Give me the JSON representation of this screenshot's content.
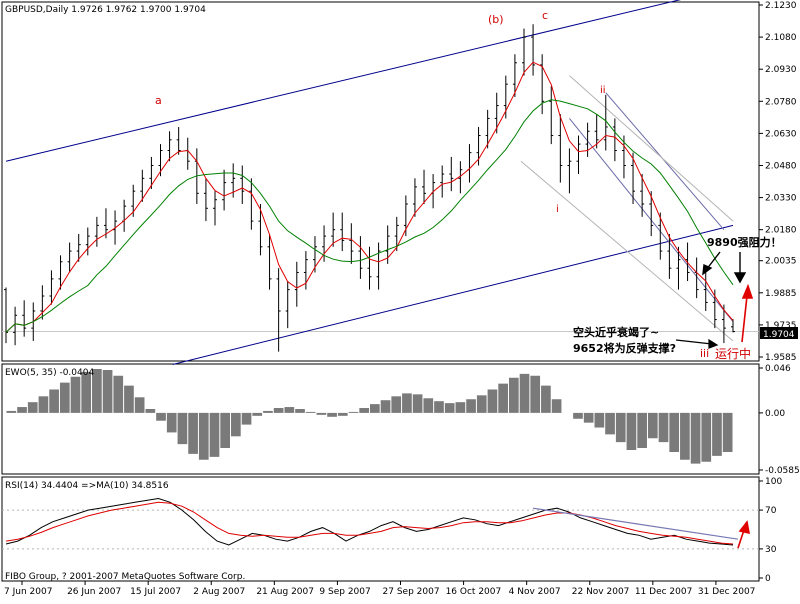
{
  "header": {
    "main": "GBPUSD,Daily  1.9726 1.9762 1.9700 1.9704",
    "ewo": "EWO(5, 35) -0.0404",
    "rsi": "RSI(14) 34.4404  =>MA(10) 34.8516",
    "copyright": "FIBO Group, ? 2001-2007 MetaQuotes Software Corp."
  },
  "price_label": "1.9704",
  "annotations": {
    "a": "a",
    "b": "(b)",
    "c": "c",
    "ii": "ii",
    "i": "i",
    "iii": "iii",
    "resistance": "9890强阻力！",
    "bears": "空头近乎衰竭了~",
    "support": "9652将为反弹支撑?",
    "running": "运行中"
  },
  "colors": {
    "candle": "#000000",
    "ma_fast": "#e00000",
    "ma_slow": "#008000",
    "channel": "#00008b",
    "fan_dark": "#6a6aa8",
    "fan_light": "#b4b4b4",
    "annot": "#d00000",
    "rsi_ma": "#e00000",
    "rsi_trend": "#7878b4"
  },
  "chart_data": [
    {
      "type": "candlestick",
      "title": "GBPUSD,Daily",
      "ylim": [
        1.9585,
        2.123
      ],
      "y_ticks": [
        "2.1230",
        "2.1080",
        "2.0930",
        "2.0780",
        "2.0630",
        "2.0480",
        "2.0330",
        "2.0180",
        "2.0035",
        "1.9885",
        "1.9735",
        "1.9585"
      ],
      "x_ticks": [
        "7 Jun 2007",
        "26 Jun 2007",
        "15 Jul 2007",
        "2 Aug 2007",
        "21 Aug 2007",
        "9 Sep 2007",
        "27 Sep 2007",
        "16 Oct 2007",
        "4 Nov 2007",
        "22 Nov 2007",
        "11 Dec 2007",
        "31 Dec 2007"
      ],
      "last": {
        "open": 1.9726,
        "high": 1.9762,
        "low": 1.97,
        "close": 1.9704
      },
      "series": [
        {
          "values": [
            [
              0,
              1.99,
              1.991,
              1.965,
              1.97
            ],
            [
              3,
              1.97,
              1.982,
              1.964,
              1.978
            ],
            [
              6,
              1.978,
              1.985,
              1.968,
              1.972
            ],
            [
              9,
              1.972,
              1.984,
              1.966,
              1.98
            ],
            [
              12,
              1.98,
              1.992,
              1.976,
              1.987
            ],
            [
              15,
              1.987,
              1.999,
              1.983,
              1.995
            ],
            [
              18,
              1.995,
              2.006,
              1.99,
              2.003
            ],
            [
              21,
              2.003,
              2.012,
              1.998,
              2.008
            ],
            [
              24,
              2.008,
              2.016,
              2.003,
              2.011
            ],
            [
              27,
              2.011,
              2.019,
              2.006,
              2.015
            ],
            [
              30,
              2.015,
              2.024,
              2.01,
              2.02
            ],
            [
              33,
              2.02,
              2.028,
              2.014,
              2.018
            ],
            [
              36,
              2.018,
              2.027,
              2.011,
              2.022
            ],
            [
              39,
              2.022,
              2.032,
              2.017,
              2.029
            ],
            [
              42,
              2.029,
              2.039,
              2.024,
              2.036
            ],
            [
              45,
              2.036,
              2.046,
              2.031,
              2.042
            ],
            [
              48,
              2.042,
              2.052,
              2.037,
              2.048
            ],
            [
              51,
              2.048,
              2.058,
              2.043,
              2.055
            ],
            [
              54,
              2.055,
              2.064,
              2.05,
              2.06
            ],
            [
              57,
              2.06,
              2.066,
              2.053,
              2.055
            ],
            [
              60,
              2.055,
              2.061,
              2.046,
              2.05
            ],
            [
              63,
              2.05,
              2.056,
              2.03,
              2.035
            ],
            [
              66,
              2.035,
              2.042,
              2.022,
              2.028
            ],
            [
              69,
              2.028,
              2.036,
              2.02,
              2.032
            ],
            [
              72,
              2.032,
              2.046,
              2.027,
              2.04
            ],
            [
              75,
              2.04,
              2.049,
              2.033,
              2.042
            ],
            [
              78,
              2.042,
              2.048,
              2.03,
              2.036
            ],
            [
              81,
              2.036,
              2.042,
              2.018,
              2.022
            ],
            [
              84,
              2.022,
              2.03,
              2.006,
              2.01
            ],
            [
              87,
              2.01,
              2.016,
              1.99,
              1.995
            ],
            [
              90,
              1.995,
              2.0,
              1.961,
              1.98
            ],
            [
              93,
              1.98,
              1.994,
              1.972,
              1.99
            ],
            [
              96,
              1.99,
              2.003,
              1.982,
              1.998
            ],
            [
              99,
              1.998,
              2.008,
              1.99,
              2.004
            ],
            [
              102,
              2.004,
              2.015,
              1.998,
              2.01
            ],
            [
              105,
              2.01,
              2.02,
              2.003,
              2.015
            ],
            [
              108,
              2.015,
              2.026,
              2.01,
              2.018
            ],
            [
              111,
              2.018,
              2.026,
              2.008,
              2.013
            ],
            [
              114,
              2.013,
              2.021,
              2.002,
              2.008
            ],
            [
              117,
              2.008,
              2.015,
              1.995,
              2.0
            ],
            [
              120,
              2.0,
              2.01,
              1.99,
              1.996
            ],
            [
              123,
              1.996,
              2.012,
              1.99,
              2.008
            ],
            [
              126,
              2.008,
              2.02,
              2.002,
              2.015
            ],
            [
              129,
              2.015,
              2.024,
              2.008,
              2.02
            ],
            [
              132,
              2.02,
              2.034,
              2.015,
              2.03
            ],
            [
              135,
              2.03,
              2.042,
              2.024,
              2.038
            ],
            [
              138,
              2.038,
              2.046,
              2.03,
              2.035
            ],
            [
              141,
              2.035,
              2.044,
              2.028,
              2.04
            ],
            [
              144,
              2.04,
              2.048,
              2.033,
              2.044
            ],
            [
              147,
              2.044,
              2.052,
              2.036,
              2.042
            ],
            [
              150,
              2.042,
              2.05,
              2.035,
              2.046
            ],
            [
              153,
              2.046,
              2.058,
              2.04,
              2.054
            ],
            [
              156,
              2.054,
              2.066,
              2.048,
              2.062
            ],
            [
              159,
              2.062,
              2.074,
              2.056,
              2.07
            ],
            [
              162,
              2.07,
              2.082,
              2.063,
              2.076
            ],
            [
              165,
              2.076,
              2.09,
              2.07,
              2.086
            ],
            [
              168,
              2.086,
              2.1,
              2.08,
              2.096
            ],
            [
              171,
              2.096,
              2.112,
              2.09,
              2.108
            ],
            [
              174,
              2.108,
              2.114,
              2.09,
              2.095
            ],
            [
              177,
              2.095,
              2.1,
              2.072,
              2.078
            ],
            [
              180,
              2.078,
              2.085,
              2.058,
              2.062
            ],
            [
              183,
              2.062,
              2.072,
              2.04,
              2.048
            ],
            [
              186,
              2.048,
              2.056,
              2.035,
              2.05
            ],
            [
              189,
              2.05,
              2.062,
              2.044,
              2.058
            ],
            [
              192,
              2.058,
              2.068,
              2.052,
              2.064
            ],
            [
              195,
              2.064,
              2.072,
              2.056,
              2.06
            ],
            [
              198,
              2.06,
              2.081,
              2.055,
              2.066
            ],
            [
              201,
              2.066,
              2.07,
              2.05,
              2.055
            ],
            [
              204,
              2.055,
              2.062,
              2.042,
              2.048
            ],
            [
              207,
              2.048,
              2.054,
              2.03,
              2.036
            ],
            [
              210,
              2.036,
              2.044,
              2.024,
              2.03
            ],
            [
              213,
              2.03,
              2.036,
              2.015,
              2.02
            ],
            [
              216,
              2.02,
              2.026,
              2.004,
              2.008
            ],
            [
              219,
              2.008,
              2.016,
              1.995,
              2.0
            ],
            [
              222,
              2.0,
              2.01,
              1.99,
              2.004
            ],
            [
              225,
              2.004,
              2.012,
              1.994,
              1.998
            ],
            [
              228,
              1.998,
              2.005,
              1.986,
              1.99
            ],
            [
              231,
              1.99,
              1.998,
              1.98,
              1.984
            ],
            [
              234,
              1.984,
              1.99,
              1.972,
              1.976
            ],
            [
              237,
              1.976,
              1.983,
              1.965,
              1.972
            ],
            [
              240,
              1.9726,
              1.9762,
              1.97,
              1.9704
            ]
          ]
        }
      ]
    },
    {
      "type": "bar",
      "title": "EWO(5, 35) -0.0404",
      "ylim": [
        -0.0585,
        0.046
      ],
      "y_ticks": [
        "0.046",
        "0.00",
        "-0.0585"
      ],
      "values": [
        0.002,
        0.006,
        0.011,
        0.017,
        0.024,
        0.031,
        0.037,
        0.042,
        0.045,
        0.044,
        0.038,
        0.028,
        0.016,
        0.004,
        -0.008,
        -0.02,
        -0.032,
        -0.042,
        -0.048,
        -0.045,
        -0.036,
        -0.024,
        -0.012,
        -0.003,
        0.002,
        0.005,
        0.006,
        0.004,
        0.001,
        -0.002,
        -0.004,
        -0.003,
        0.001,
        0.005,
        0.009,
        0.013,
        0.017,
        0.02,
        0.019,
        0.015,
        0.012,
        0.01,
        0.011,
        0.014,
        0.018,
        0.024,
        0.03,
        0.036,
        0.04,
        0.038,
        0.028,
        0.014,
        0.0,
        -0.006,
        -0.01,
        -0.015,
        -0.022,
        -0.03,
        -0.038,
        -0.036,
        -0.026,
        -0.03,
        -0.04,
        -0.048,
        -0.052,
        -0.05,
        -0.044,
        -0.04
      ]
    },
    {
      "type": "line",
      "title": "RSI(14) 34.4404  =>MA(10) 34.8516",
      "ylim": [
        0,
        100
      ],
      "y_ticks": [
        "100",
        "70",
        "30",
        "0"
      ],
      "series": [
        {
          "name": "RSI(14)",
          "values": [
            35,
            38,
            44,
            52,
            58,
            62,
            66,
            70,
            72,
            74,
            76,
            78,
            80,
            82,
            78,
            70,
            60,
            48,
            38,
            34,
            40,
            46,
            44,
            40,
            38,
            42,
            48,
            52,
            46,
            38,
            44,
            48,
            54,
            58,
            52,
            48,
            50,
            54,
            58,
            62,
            60,
            56,
            54,
            58,
            62,
            66,
            70,
            72,
            68,
            62,
            58,
            54,
            50,
            46,
            44,
            40,
            42,
            44,
            40,
            38,
            36,
            35,
            34
          ]
        },
        {
          "name": "MA(10)",
          "values": [
            38,
            40,
            43,
            47,
            52,
            56,
            60,
            64,
            67,
            70,
            72,
            74,
            76,
            78,
            77,
            74,
            68,
            60,
            52,
            46,
            44,
            43,
            44,
            43,
            42,
            42,
            44,
            46,
            46,
            44,
            44,
            46,
            48,
            52,
            53,
            52,
            51,
            52,
            54,
            57,
            58,
            58,
            57,
            57,
            59,
            62,
            65,
            67,
            67,
            65,
            62,
            58,
            54,
            51,
            48,
            46,
            44,
            43,
            42,
            40,
            38,
            36,
            35
          ]
        }
      ]
    }
  ]
}
